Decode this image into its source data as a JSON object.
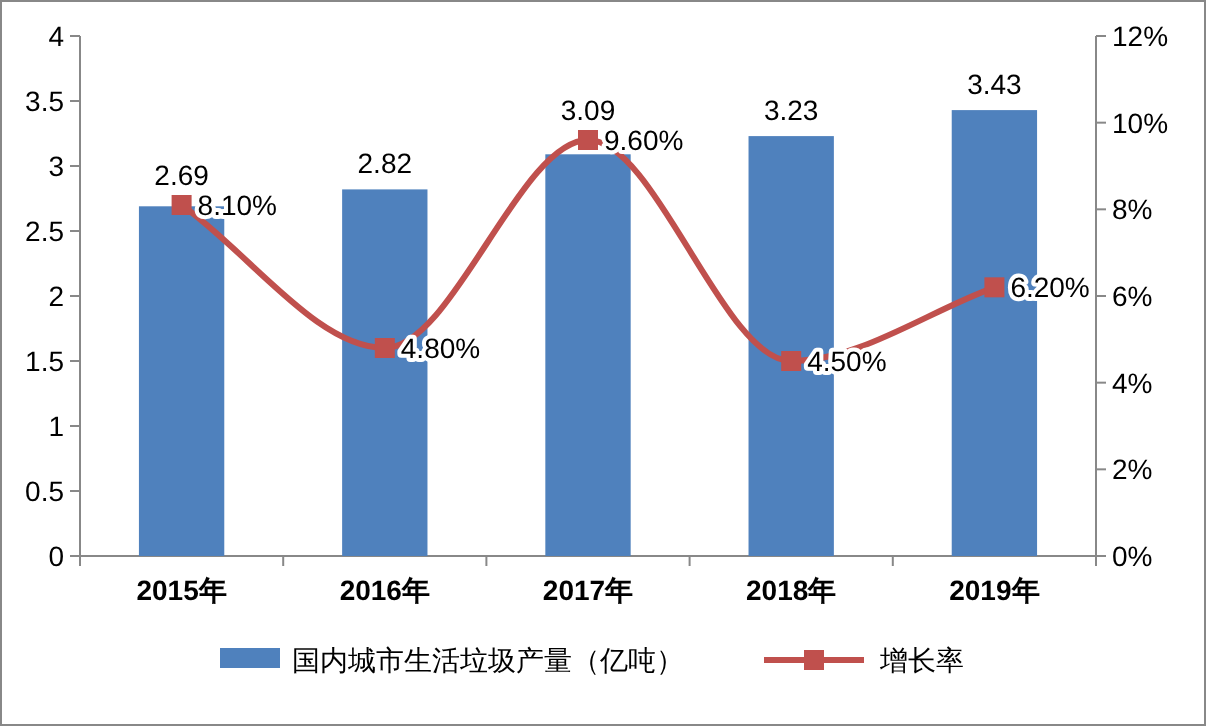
{
  "chart_data": {
    "type": "bar",
    "categories": [
      "2015年",
      "2016年",
      "2017年",
      "2018年",
      "2019年"
    ],
    "series": [
      {
        "name": "国内城市生活垃圾产量（亿吨）",
        "color": "#4f81bd",
        "values": [
          2.69,
          2.82,
          3.09,
          3.23,
          3.43
        ],
        "value_labels": [
          "2.69",
          "2.82",
          "3.09",
          "3.23",
          "3.43"
        ]
      },
      {
        "name": "增长率",
        "type": "line",
        "axis": "y2",
        "color": "#c0504d",
        "values": [
          8.1,
          4.8,
          9.6,
          4.5,
          6.2
        ],
        "value_labels": [
          "8.10%",
          "4.80%",
          "9.60%",
          "4.50%",
          "6.20%"
        ]
      }
    ],
    "ylim": [
      0,
      4
    ],
    "yticks": [
      0,
      0.5,
      1,
      1.5,
      2,
      2.5,
      3,
      3.5,
      4
    ],
    "y2lim": [
      0,
      12
    ],
    "y2ticks": [
      {
        "value": 0,
        "label": "0%"
      },
      {
        "value": 2,
        "label": "2%"
      },
      {
        "value": 4,
        "label": "4%"
      },
      {
        "value": 6,
        "label": "6%"
      },
      {
        "value": 8,
        "label": "8%"
      },
      {
        "value": 10,
        "label": "10%"
      },
      {
        "value": 12,
        "label": "12%"
      }
    ],
    "legend": "bottom",
    "marker": "square",
    "grid": false
  }
}
